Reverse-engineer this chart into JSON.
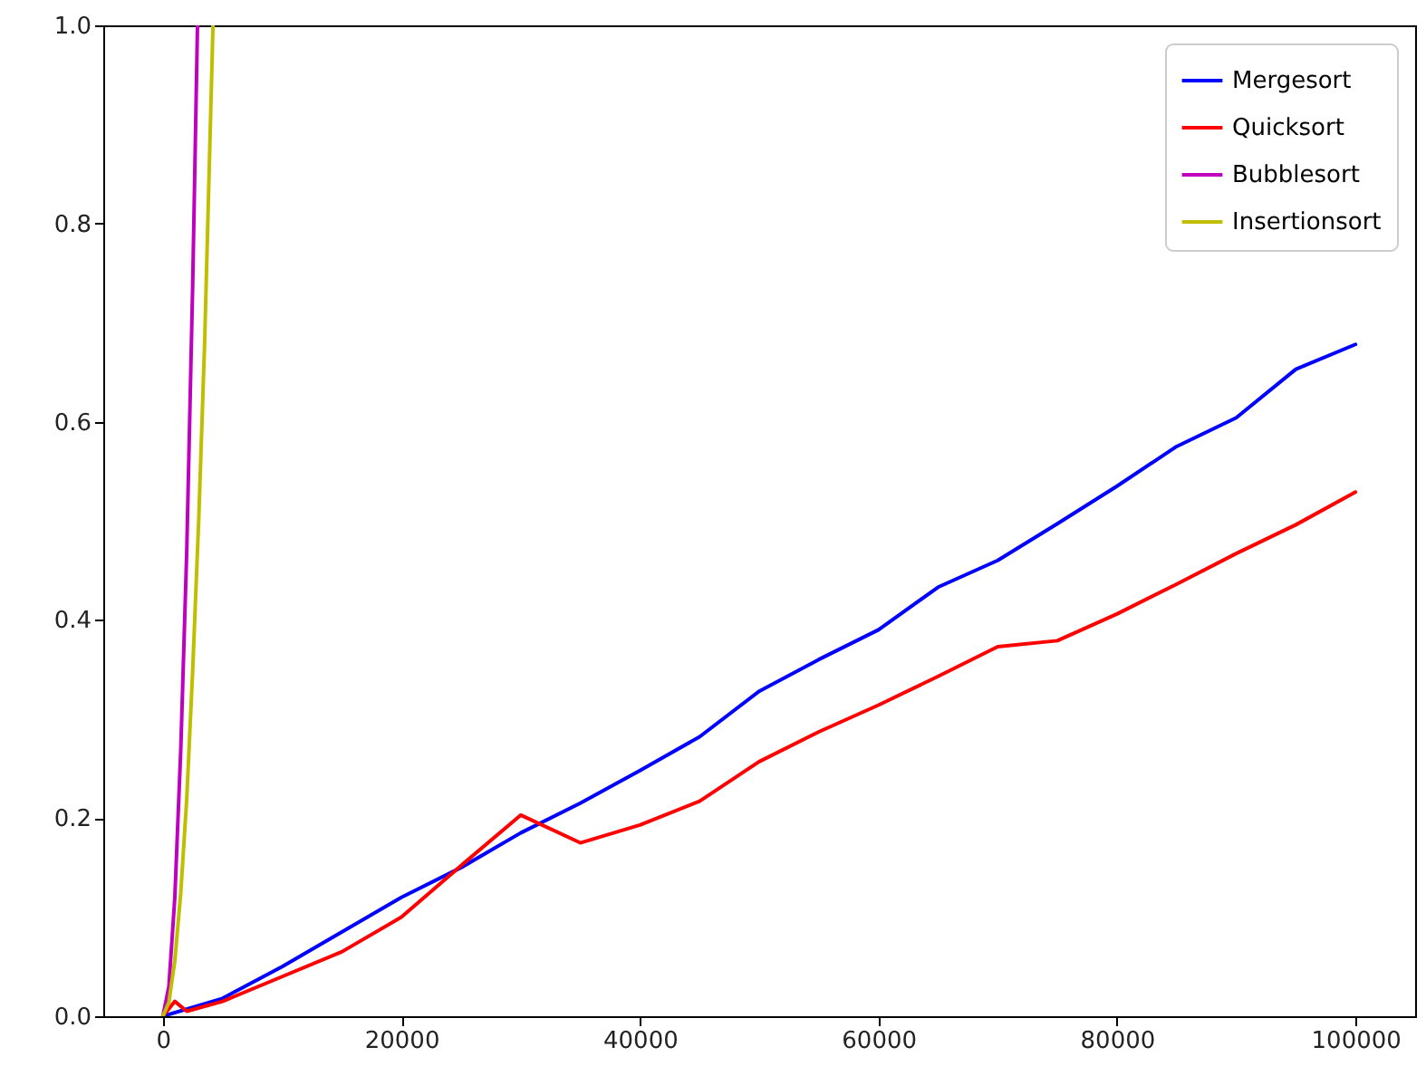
{
  "chart_data": {
    "type": "line",
    "xlim": [
      -5000,
      105000
    ],
    "ylim": [
      0,
      1
    ],
    "xticks": [
      0,
      20000,
      40000,
      60000,
      80000,
      100000
    ],
    "yticks": [
      {
        "value": 0,
        "label": "0.0"
      },
      {
        "value": 0.2,
        "label": "0.2"
      },
      {
        "value": 0.4,
        "label": "0.4"
      },
      {
        "value": 0.6,
        "label": "0.6"
      },
      {
        "value": 0.8,
        "label": "0.8"
      },
      {
        "value": 1,
        "label": "1.0"
      }
    ],
    "legend": "top right",
    "line_style": "solid",
    "series": [
      {
        "name": "Mergesort",
        "color": "#0000ff",
        "x": [
          0,
          5000,
          10000,
          15000,
          20000,
          25000,
          30000,
          35000,
          40000,
          45000,
          50000,
          55000,
          60000,
          65000,
          70000,
          75000,
          80000,
          85000,
          90000,
          95000,
          100000
        ],
        "values": [
          0,
          0.018,
          0.05,
          0.085,
          0.12,
          0.15,
          0.185,
          0.215,
          0.248,
          0.282,
          0.328,
          0.36,
          0.39,
          0.433,
          0.46,
          0.497,
          0.535,
          0.575,
          0.604,
          0.653,
          0.678
        ]
      },
      {
        "name": "Quicksort",
        "color": "#ff0000",
        "x": [
          0,
          1000,
          2000,
          5000,
          10000,
          15000,
          20000,
          25000,
          30000,
          35000,
          40000,
          45000,
          50000,
          55000,
          60000,
          65000,
          70000,
          75000,
          80000,
          85000,
          90000,
          95000,
          100000
        ],
        "values": [
          0,
          0.015,
          0.005,
          0.015,
          0.04,
          0.065,
          0.1,
          0.152,
          0.203,
          0.175,
          0.193,
          0.217,
          0.257,
          0.287,
          0.314,
          0.343,
          0.373,
          0.379,
          0.406,
          0.436,
          0.467,
          0.496,
          0.529
        ]
      },
      {
        "name": "Bubblesort",
        "color": "#bf00bf",
        "x": [
          0,
          500,
          1000,
          1500,
          2000,
          2500,
          2900
        ],
        "values": [
          0,
          0.03,
          0.12,
          0.27,
          0.47,
          0.74,
          1.0
        ]
      },
      {
        "name": "Insertionsort",
        "color": "#bfbf00",
        "x": [
          0,
          500,
          1000,
          1500,
          2000,
          2500,
          3000,
          3500,
          4200
        ],
        "values": [
          0,
          0.014,
          0.056,
          0.125,
          0.22,
          0.35,
          0.5,
          0.68,
          1.0
        ]
      }
    ]
  }
}
